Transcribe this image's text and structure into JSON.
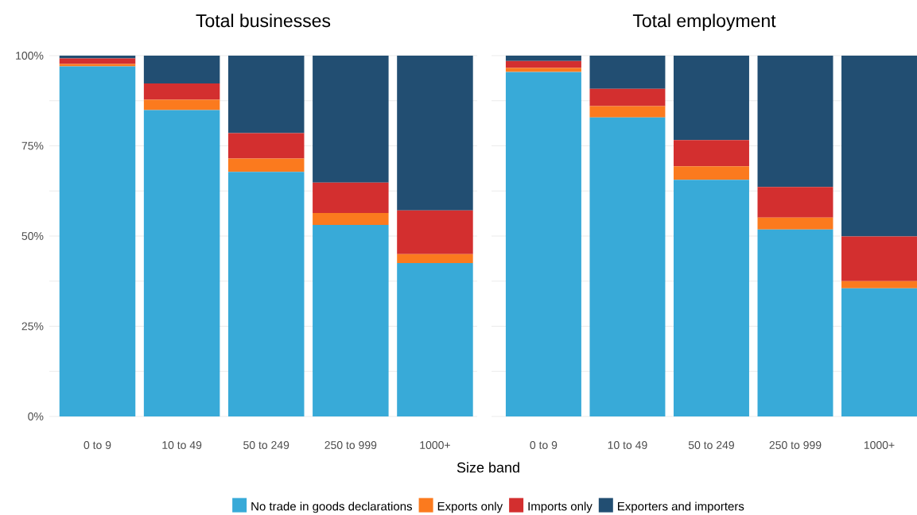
{
  "chart_data": [
    {
      "type": "bar",
      "title": "Total businesses",
      "xlabel": "Size band",
      "stacked": true,
      "grid": "y",
      "legend": "bottom",
      "categories": [
        "0 to 9",
        "10 to 49",
        "50 to 249",
        "250 to 999",
        "1000+"
      ],
      "ylim": [
        0,
        100
      ],
      "yticks": [
        {
          "value": 0,
          "label": "0%"
        },
        {
          "value": 12.5,
          "label": null
        },
        {
          "value": 25,
          "label": "25%"
        },
        {
          "value": 37.5,
          "label": null
        },
        {
          "value": 50,
          "label": "50%"
        },
        {
          "value": 62.5,
          "label": null
        },
        {
          "value": 75,
          "label": "75%"
        },
        {
          "value": 87.5,
          "label": null
        },
        {
          "value": 100,
          "label": "100%"
        }
      ],
      "series": [
        {
          "name": "No trade in goods declarations",
          "color": "#38aad8",
          "values": [
            97.0,
            84.9,
            67.8,
            53.1,
            42.5
          ]
        },
        {
          "name": "Exports only",
          "color": "#fb7a1e",
          "values": [
            0.7,
            2.9,
            3.7,
            3.3,
            2.5
          ]
        },
        {
          "name": "Imports only",
          "color": "#d32f2f",
          "values": [
            1.5,
            4.5,
            7.0,
            8.4,
            12.1
          ]
        },
        {
          "name": "Exporters and importers",
          "color": "#224e72",
          "values": [
            0.8,
            7.7,
            21.5,
            35.2,
            42.9
          ]
        }
      ]
    },
    {
      "type": "bar",
      "title": "Total employment",
      "stacked": true,
      "grid": "y",
      "tick_labels": "x",
      "categories": [
        "0 to 9",
        "10 to 49",
        "50 to 249",
        "250 to 999",
        "1000+"
      ],
      "ylim": [
        0,
        100
      ],
      "yticks": [
        {
          "value": 0,
          "label": null
        },
        {
          "value": 12.5,
          "label": null
        },
        {
          "value": 25,
          "label": null
        },
        {
          "value": 37.5,
          "label": null
        },
        {
          "value": 50,
          "label": null
        },
        {
          "value": 62.5,
          "label": null
        },
        {
          "value": 75,
          "label": null
        },
        {
          "value": 87.5,
          "label": null
        },
        {
          "value": 100,
          "label": null
        }
      ],
      "series": [
        {
          "color": "#38aad8",
          "values": [
            95.5,
            82.9,
            65.6,
            51.8,
            35.5
          ]
        },
        {
          "color": "#fb7a1e",
          "values": [
            1.1,
            3.1,
            3.7,
            3.3,
            2.0
          ]
        },
        {
          "color": "#d32f2f",
          "values": [
            1.9,
            4.8,
            7.3,
            8.5,
            12.4
          ]
        },
        {
          "color": "#224e72",
          "values": [
            1.5,
            9.2,
            23.4,
            36.4,
            50.1
          ]
        }
      ]
    }
  ]
}
